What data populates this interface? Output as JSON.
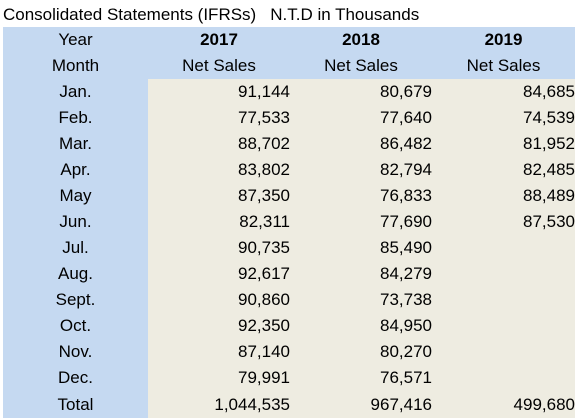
{
  "caption": {
    "title": "Consolidated Statements (IFRSs)",
    "unit": "N.T.D in Thousands"
  },
  "header": {
    "year_label": "Year",
    "month_label": "Month",
    "years": [
      "2017",
      "2018",
      "2019"
    ],
    "metric": [
      "Net Sales",
      "Net Sales",
      "Net Sales"
    ]
  },
  "rows": [
    {
      "month": "Jan.",
      "values": [
        "91,144",
        "80,679",
        "84,685"
      ]
    },
    {
      "month": "Feb.",
      "values": [
        "77,533",
        "77,640",
        "74,539"
      ]
    },
    {
      "month": "Mar.",
      "values": [
        "88,702",
        "86,482",
        "81,952"
      ]
    },
    {
      "month": "Apr.",
      "values": [
        "83,802",
        "82,794",
        "82,485"
      ]
    },
    {
      "month": "May",
      "values": [
        "87,350",
        "76,833",
        "88,489"
      ]
    },
    {
      "month": "Jun.",
      "values": [
        "82,311",
        "77,690",
        "87,530"
      ]
    },
    {
      "month": "Jul.",
      "values": [
        "90,735",
        "85,490",
        ""
      ]
    },
    {
      "month": "Aug.",
      "values": [
        "92,617",
        "84,279",
        ""
      ]
    },
    {
      "month": "Sept.",
      "values": [
        "90,860",
        "73,738",
        ""
      ]
    },
    {
      "month": "Oct.",
      "values": [
        "92,350",
        "84,950",
        ""
      ]
    },
    {
      "month": "Nov.",
      "values": [
        "87,140",
        "80,270",
        ""
      ]
    },
    {
      "month": "Dec.",
      "values": [
        "79,991",
        "76,571",
        ""
      ]
    }
  ],
  "total": {
    "label": "Total",
    "values": [
      "1,044,535",
      "967,416",
      "499,680"
    ]
  },
  "colors": {
    "header_bg": "#c5d9f1",
    "cell_bg": "#eeece1"
  }
}
